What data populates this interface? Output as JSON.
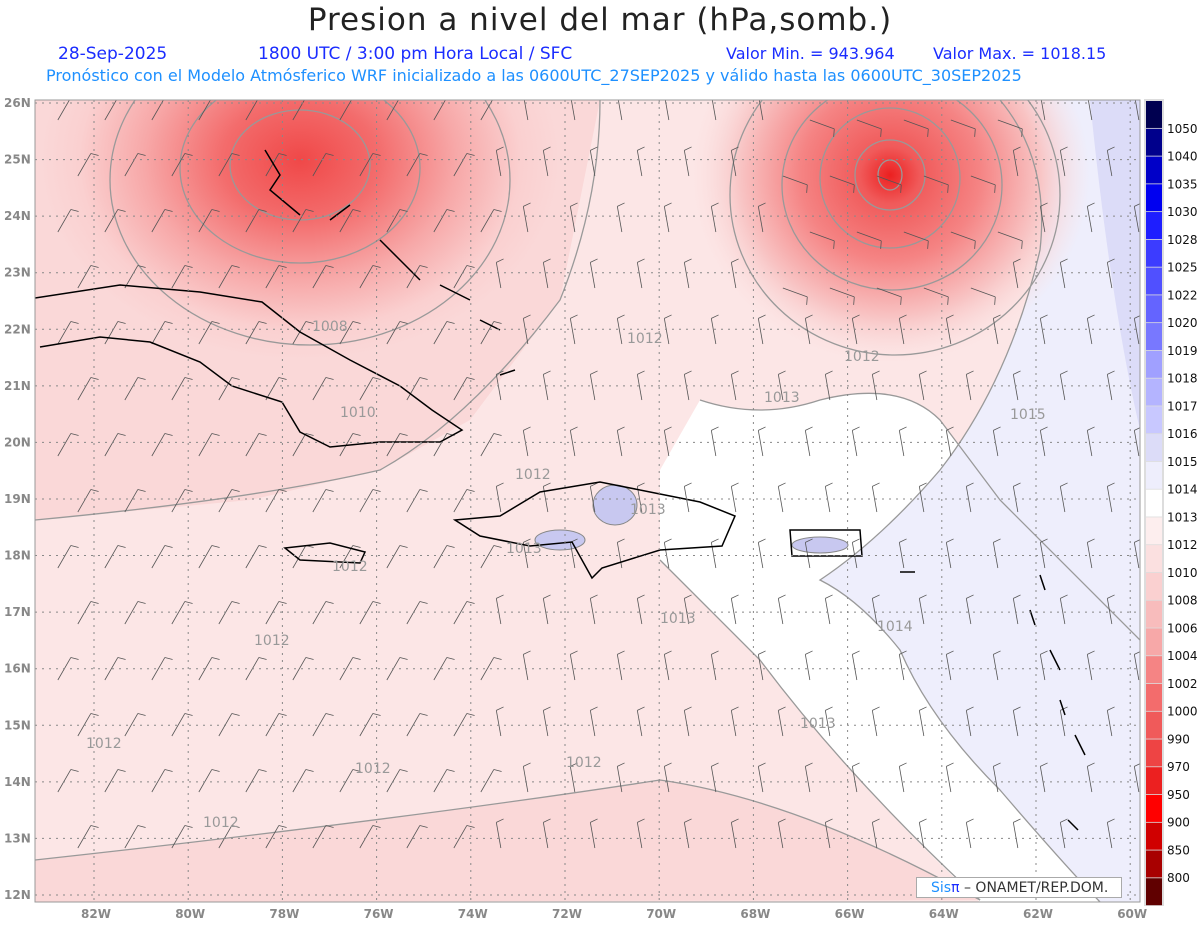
{
  "header": {
    "title": "Presion a nivel del mar (hPa,somb.)",
    "date": "28-Sep-2025",
    "time": "1800 UTC / 3:00 pm Hora Local / SFC",
    "min": "Valor Min. = 943.964",
    "max": "Valor Max. = 1018.15",
    "subtitle": "Pronóstico con el Modelo Atmósferico WRF inicializado a las 0600UTC_27SEP2025 y válido hasta las  0600UTC_30SEP2025"
  },
  "axes": {
    "lat_labels": [
      "26N",
      "25N",
      "24N",
      "23N",
      "22N",
      "21N",
      "20N",
      "19N",
      "18N",
      "17N",
      "16N",
      "15N",
      "14N",
      "13N",
      "12N"
    ],
    "lon_labels": [
      "82W",
      "80W",
      "78W",
      "76W",
      "74W",
      "72W",
      "70W",
      "68W",
      "66W",
      "64W",
      "62W",
      "60W"
    ]
  },
  "contour_labels": [
    "1008",
    "1010",
    "1012",
    "1013",
    "1015",
    "1012",
    "1012",
    "1013",
    "1013",
    "1012",
    "1012",
    "1013",
    "1014",
    "1013",
    "1012",
    "1012",
    "1012",
    "1012"
  ],
  "colorbar": {
    "labels": [
      "1050",
      "1040",
      "1035",
      "1030",
      "1028",
      "1025",
      "1022",
      "1020",
      "1019",
      "1018",
      "1017",
      "1016",
      "1015",
      "1014",
      "1013",
      "1012",
      "1010",
      "1008",
      "1006",
      "1004",
      "1002",
      "1000",
      "990",
      "970",
      "950",
      "900",
      "850",
      "800"
    ],
    "colors": [
      "#000050",
      "#00008c",
      "#0000c8",
      "#0000f0",
      "#1e1eff",
      "#3c3cff",
      "#5050ff",
      "#6464ff",
      "#7878ff",
      "#a0a0ff",
      "#b4b4ff",
      "#c8c8ff",
      "#dcdcf8",
      "#eeeefc",
      "#ffffff",
      "#fdeeee",
      "#fbe0e0",
      "#fad0d0",
      "#f8bcbc",
      "#f7a8a8",
      "#f58484",
      "#f36c6c",
      "#f05a5a",
      "#ee4444",
      "#ec2020",
      "#ff0000",
      "#d00000",
      "#a80000",
      "#600000"
    ]
  },
  "credit": {
    "sis": "Sis",
    "pi": "π",
    "rest": "–  ONAMET/REP.DOM."
  }
}
